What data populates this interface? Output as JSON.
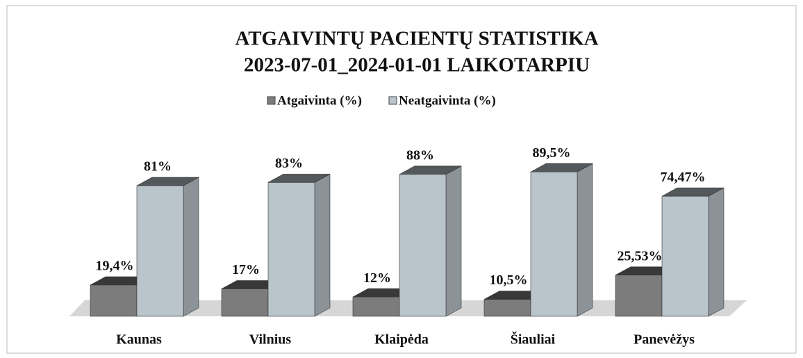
{
  "chart_data": {
    "type": "bar3d",
    "title": "ATGAIVINTŲ PACIENTŲ STATISTIKA",
    "subtitle": "2023-07-01_2024-01-01 LAIKOTARPIU",
    "categories": [
      "Kaunas",
      "Vilnius",
      "Klaipėda",
      "Šiauliai",
      "Panevėžys"
    ],
    "series": [
      {
        "name": "Atgaivinta (%)",
        "color": "#7c7c7c",
        "values": [
          19.4,
          17,
          12,
          10.5,
          25.53
        ],
        "value_labels": [
          "19,4%",
          "17%",
          "12%",
          "10,5%",
          "25,53%"
        ]
      },
      {
        "name": "Neatgaivinta (%)",
        "color": "#b9c4cb",
        "values": [
          81,
          83,
          88,
          89.5,
          74.47
        ],
        "value_labels": [
          "81%",
          "83%",
          "88%",
          "89,5%",
          "74,47%"
        ]
      }
    ],
    "legend": "top"
  }
}
